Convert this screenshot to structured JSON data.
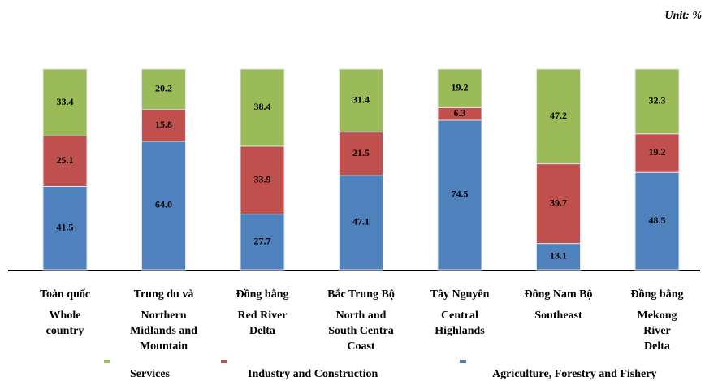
{
  "chart_data": {
    "type": "stacked_bar",
    "unit_label": "Unit: %",
    "categories_vi": [
      "Toàn quốc",
      "Trung du và",
      "Đồng bằng",
      "Bắc Trung Bộ",
      "Tây Nguyên",
      "Đông Nam Bộ",
      "Đồng bằng"
    ],
    "categories": [
      [
        "Whole",
        "country"
      ],
      [
        "Northern",
        "Midlands and",
        "Mountain"
      ],
      [
        "Red River",
        "Delta"
      ],
      [
        "North and",
        "South Centra",
        "Coast"
      ],
      [
        "Central",
        "Highlands"
      ],
      [
        "Southeast"
      ],
      [
        "Mekong",
        "River",
        "Delta"
      ]
    ],
    "ylim": [
      0,
      100
    ],
    "series": [
      {
        "name": "Agriculture, Forestry and Fishery",
        "color": "#4f81bd",
        "values": [
          41.5,
          64.0,
          27.7,
          47.1,
          74.5,
          13.1,
          48.5
        ],
        "value_labels": [
          "41.5",
          "64.0",
          "27.7",
          "47.1",
          "74.5",
          "13.1",
          "48.5"
        ]
      },
      {
        "name": "Industry and Construction",
        "color": "#c0504d",
        "values": [
          25.1,
          15.8,
          33.9,
          21.5,
          6.3,
          39.7,
          19.2
        ],
        "value_labels": [
          "25.1",
          "15.8",
          "33.9",
          "21.5",
          "6.3",
          "39.7",
          "19.2"
        ]
      },
      {
        "name": "Services",
        "color": "#9bbb59",
        "values": [
          33.4,
          20.2,
          38.4,
          31.4,
          19.2,
          47.2,
          32.3
        ],
        "value_labels": [
          "33.4",
          "20.2",
          "38.4",
          "31.4",
          "19.2",
          "47.2",
          "32.3"
        ]
      }
    ]
  }
}
